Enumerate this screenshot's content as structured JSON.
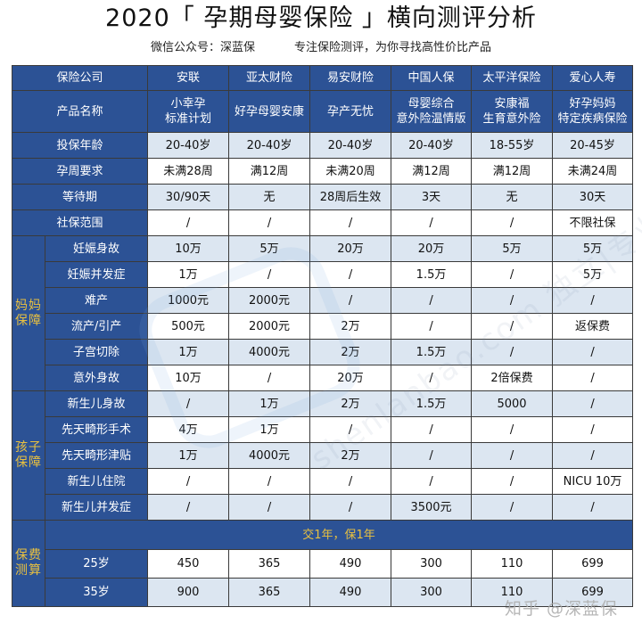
{
  "header": {
    "title": "2020「 孕期母婴保险 」横向测评分析",
    "subtitle_left": "微信公众号：深蓝保",
    "subtitle_right": "专注保险测评，为你寻找高性价比产品"
  },
  "colors": {
    "header_blue": "#2c5295",
    "light_row": "#dce6f1",
    "gold_text": "#e8c040"
  },
  "table": {
    "companies_label": "保险公司",
    "companies": [
      "安联",
      "亚太财险",
      "易安财险",
      "中国人保",
      "太平洋保险",
      "爱心人寿"
    ],
    "products_label": "产品名称",
    "products": [
      "小幸孕\n标准计划",
      "好孕母婴安康",
      "孕产无忧",
      "母婴综合\n意外险温情版",
      "安康福\n生育意外险",
      "好孕妈妈\n特定疾病保险"
    ],
    "general_rows": [
      {
        "label": "投保年龄",
        "values": [
          "20-40岁",
          "20-40岁",
          "20-40岁",
          "20-40岁",
          "18-55岁",
          "20-45岁"
        ]
      },
      {
        "label": "孕周要求",
        "values": [
          "未满28周",
          "满12周",
          "未满20周",
          "满12周",
          "满12周",
          "未满24周"
        ]
      },
      {
        "label": "等待期",
        "values": [
          "30/90天",
          "无",
          "28周后生效",
          "3天",
          "无",
          "30天"
        ]
      },
      {
        "label": "社保范围",
        "values": [
          "/",
          "/",
          "/",
          "/",
          "/",
          "不限社保"
        ]
      }
    ],
    "mother_section": {
      "label": "妈妈\n保障",
      "rows": [
        {
          "label": "妊娠身故",
          "values": [
            "10万",
            "5万",
            "20万",
            "20万",
            "5万",
            "5万"
          ]
        },
        {
          "label": "妊娠并发症",
          "values": [
            "1万",
            "/",
            "/",
            "1.5万",
            "/",
            "5万"
          ]
        },
        {
          "label": "难产",
          "values": [
            "1000元",
            "2000元",
            "/",
            "/",
            "/",
            "/"
          ]
        },
        {
          "label": "流产/引产",
          "values": [
            "500元",
            "2000元",
            "2万",
            "/",
            "/",
            "返保费"
          ]
        },
        {
          "label": "子宫切除",
          "values": [
            "1万",
            "4000元",
            "2万",
            "1.5万",
            "/",
            "/"
          ]
        },
        {
          "label": "意外身故",
          "values": [
            "10万",
            "/",
            "20万",
            "/",
            "2倍保费",
            "/"
          ]
        }
      ]
    },
    "child_section": {
      "label": "孩子\n保障",
      "rows": [
        {
          "label": "新生儿身故",
          "values": [
            "/",
            "1万",
            "2万",
            "1.5万",
            "5000",
            "/"
          ]
        },
        {
          "label": "先天畸形手术",
          "values": [
            "4万",
            "1万",
            "/",
            "/",
            "/",
            "/"
          ]
        },
        {
          "label": "先天畸形津贴",
          "values": [
            "1万",
            "4000元",
            "2万",
            "/",
            "/",
            "/"
          ]
        },
        {
          "label": "新生儿住院",
          "values": [
            "/",
            "/",
            "/",
            "/",
            "/",
            "NICU 10万"
          ]
        },
        {
          "label": "新生儿并发症",
          "values": [
            "/",
            "/",
            "/",
            "3500元",
            "/",
            "/"
          ]
        }
      ]
    },
    "premium_section": {
      "label": "保费\n测算",
      "note": "交1年，保1年",
      "rows": [
        {
          "label": "25岁",
          "values": [
            "450",
            "365",
            "490",
            "300",
            "110",
            "699"
          ]
        },
        {
          "label": "35岁",
          "values": [
            "900",
            "365",
            "490",
            "300",
            "110",
            "699"
          ]
        }
      ]
    }
  },
  "watermarks": {
    "diagonal_text": "shenlanbao.com 独立|专业|诚信",
    "zhihu": "知乎 @深蓝保"
  }
}
